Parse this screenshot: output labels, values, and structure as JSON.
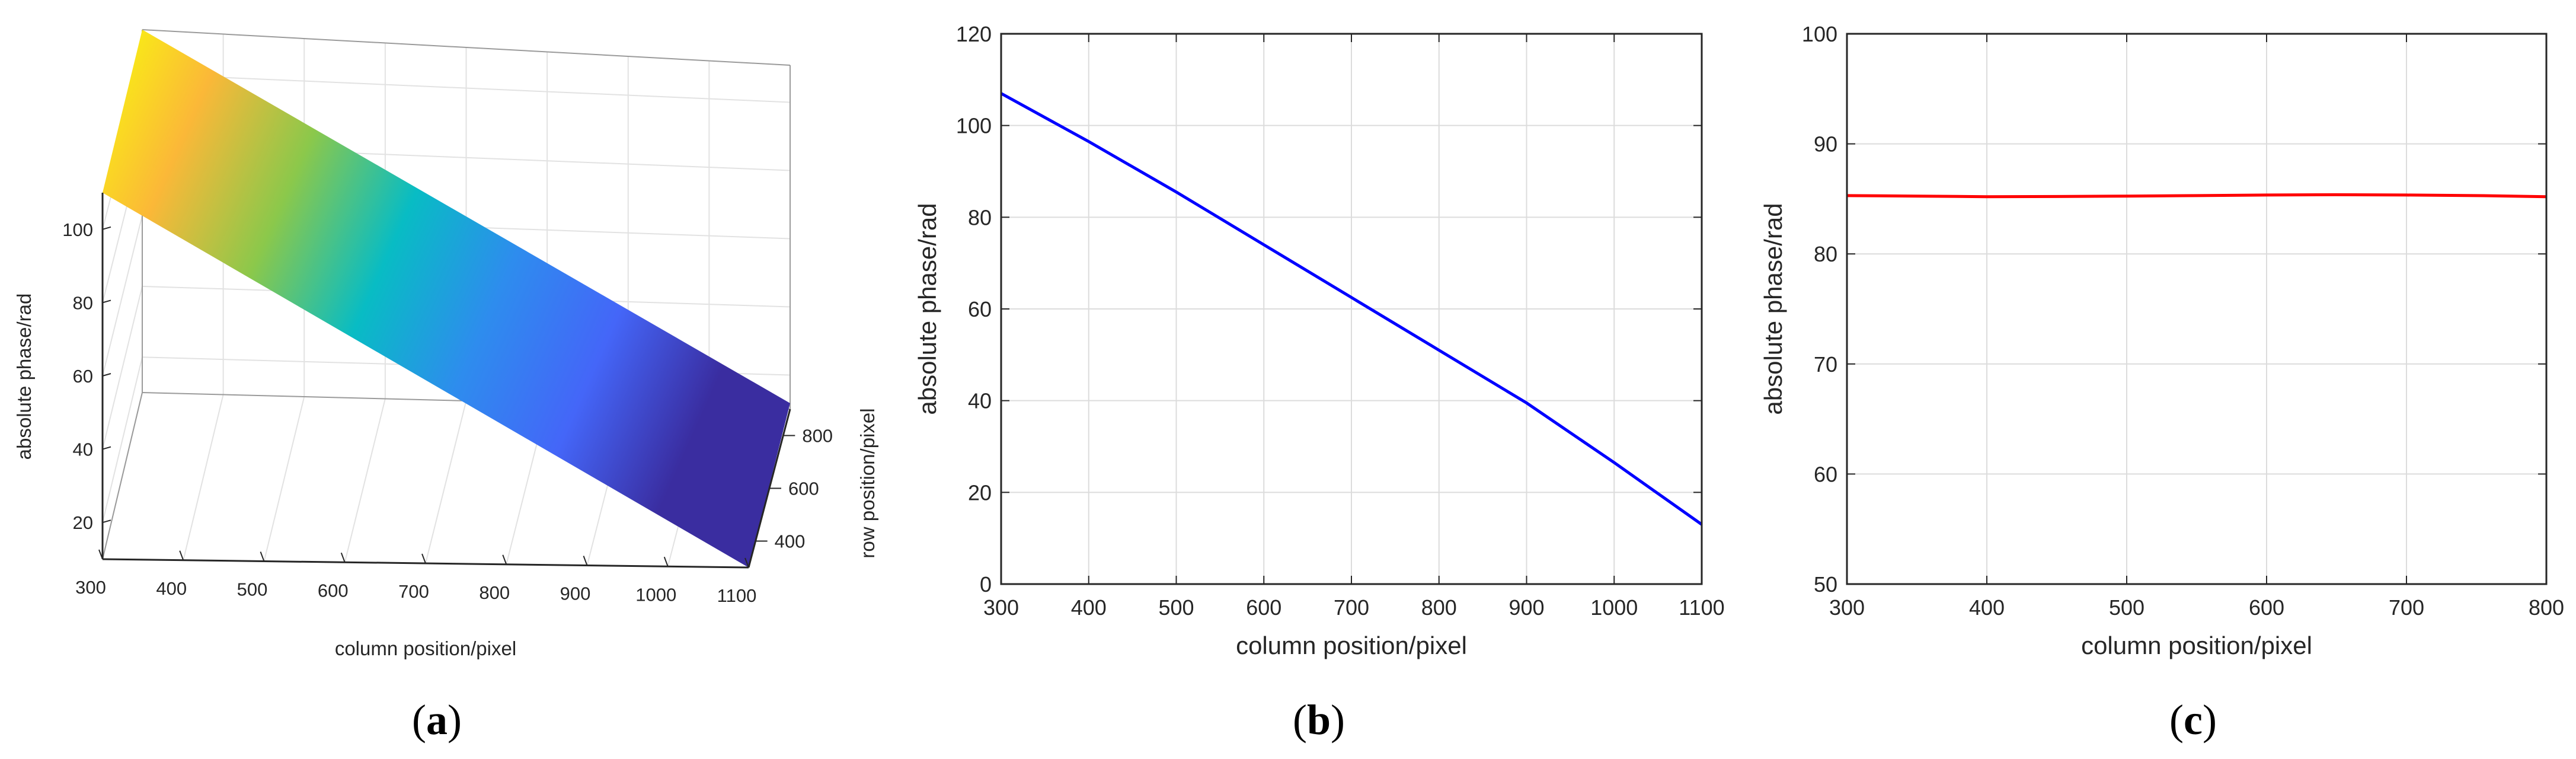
{
  "chart_data": [
    {
      "id": "a",
      "type": "surface",
      "panel_label": "(a)",
      "xlabel": "column position/pixel",
      "ylabel": "row position/pixel",
      "zlabel": "absolute phase/rad",
      "x_ticks": [
        "300",
        "400",
        "500",
        "600",
        "700",
        "800",
        "900",
        "1000",
        "1100"
      ],
      "y_ticks": [
        "400",
        "600",
        "800"
      ],
      "z_ticks": [
        "20",
        "40",
        "60",
        "80",
        "100"
      ],
      "xlim": [
        300,
        1100
      ],
      "zlim": [
        10,
        110
      ],
      "surface_phase_range": [
        107,
        13
      ],
      "colormap": [
        "#f8fa0d",
        "#fbb838",
        "#8bc84b",
        "#08bcc4",
        "#2e8cee",
        "#4466f8",
        "#3a2da0"
      ]
    },
    {
      "id": "b",
      "type": "line",
      "panel_label": "(b)",
      "xlabel": "column position/pixel",
      "ylabel": "absolute phase/rad",
      "xlim": [
        300,
        1100
      ],
      "ylim": [
        0,
        120
      ],
      "x_ticks": [
        300,
        400,
        500,
        600,
        700,
        800,
        900,
        1000,
        1100
      ],
      "y_ticks": [
        0,
        20,
        40,
        60,
        80,
        100,
        120
      ],
      "grid": true,
      "series": [
        {
          "color": "#0000ff",
          "x": [
            300,
            400,
            500,
            600,
            700,
            800,
            900,
            1000,
            1100
          ],
          "y": [
            107.0,
            96.5,
            85.5,
            74.0,
            62.5,
            51.0,
            39.5,
            26.5,
            13.0
          ]
        }
      ]
    },
    {
      "id": "c",
      "type": "line",
      "panel_label": "(c)",
      "xlabel": "column position/pixel",
      "ylabel": "absolute phase/rad",
      "xlim": [
        300,
        800
      ],
      "ylim": [
        50,
        100
      ],
      "x_ticks": [
        300,
        400,
        500,
        600,
        700,
        800
      ],
      "y_ticks": [
        50,
        60,
        70,
        80,
        90,
        100
      ],
      "grid": true,
      "series": [
        {
          "color": "#ff0000",
          "x": [
            300,
            350,
            400,
            450,
            500,
            550,
            600,
            650,
            700,
            750,
            800
          ],
          "y": [
            85.3,
            85.25,
            85.2,
            85.22,
            85.25,
            85.3,
            85.35,
            85.38,
            85.35,
            85.3,
            85.2
          ]
        }
      ]
    }
  ]
}
